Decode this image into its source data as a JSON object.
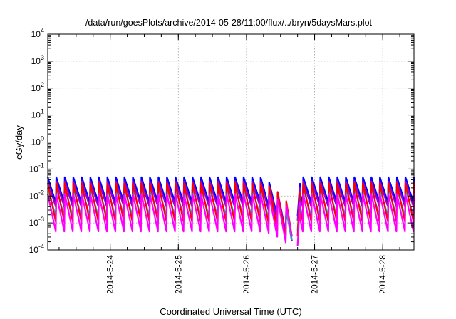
{
  "chart_data": {
    "type": "line",
    "title": "/data/run/goesPlots/archive/2014-05-28/11:00/flux/../bryn/5daysMars.plot",
    "xlabel": "Coordinated Universal Time (UTC)",
    "ylabel": "cGy/day",
    "yscale": "log",
    "ylim": [
      0.0001,
      10000
    ],
    "xlim": [
      "2014-05-23 02:00",
      "2014-05-28 11:00"
    ],
    "grid": true,
    "y_ticks": [
      {
        "base": "10",
        "exp": "-4"
      },
      {
        "base": "10",
        "exp": "-3"
      },
      {
        "base": "10",
        "exp": "-2"
      },
      {
        "base": "10",
        "exp": "-1"
      },
      {
        "base": "10",
        "exp": "0"
      },
      {
        "base": "10",
        "exp": "1"
      },
      {
        "base": "10",
        "exp": "2"
      },
      {
        "base": "10",
        "exp": "3"
      },
      {
        "base": "10",
        "exp": "4"
      }
    ],
    "x_ticks": [
      {
        "label": "2014-5-24",
        "time": "2014-05-24 00:00"
      },
      {
        "label": "2014-5-25",
        "time": "2014-05-25 00:00"
      },
      {
        "label": "2014-5-26",
        "time": "2014-05-26 00:00"
      },
      {
        "label": "2014-5-27",
        "time": "2014-05-27 00:00"
      },
      {
        "label": "2014-5-28",
        "time": "2014-05-28 00:00"
      }
    ],
    "sawtooth_period_hours": 3,
    "data_gap": {
      "start": "2014-05-26 16:00",
      "end": "2014-05-26 18:00"
    },
    "dip_near_gap": {
      "time": "2014-05-26 16:00",
      "min_value": 0.0001
    },
    "series": [
      {
        "color": "#0000ff",
        "peak": 0.05,
        "trough": 0.005
      },
      {
        "color": "#9400d3",
        "peak": 0.035,
        "trough": 0.0035
      },
      {
        "color": "#00bfbf",
        "peak": 0.02,
        "trough": 0.0015
      },
      {
        "color": "#ff0000",
        "peak": 0.03,
        "trough": 0.0009
      },
      {
        "color": "#ff00ff",
        "peak": 0.012,
        "trough": 0.0004
      }
    ]
  }
}
